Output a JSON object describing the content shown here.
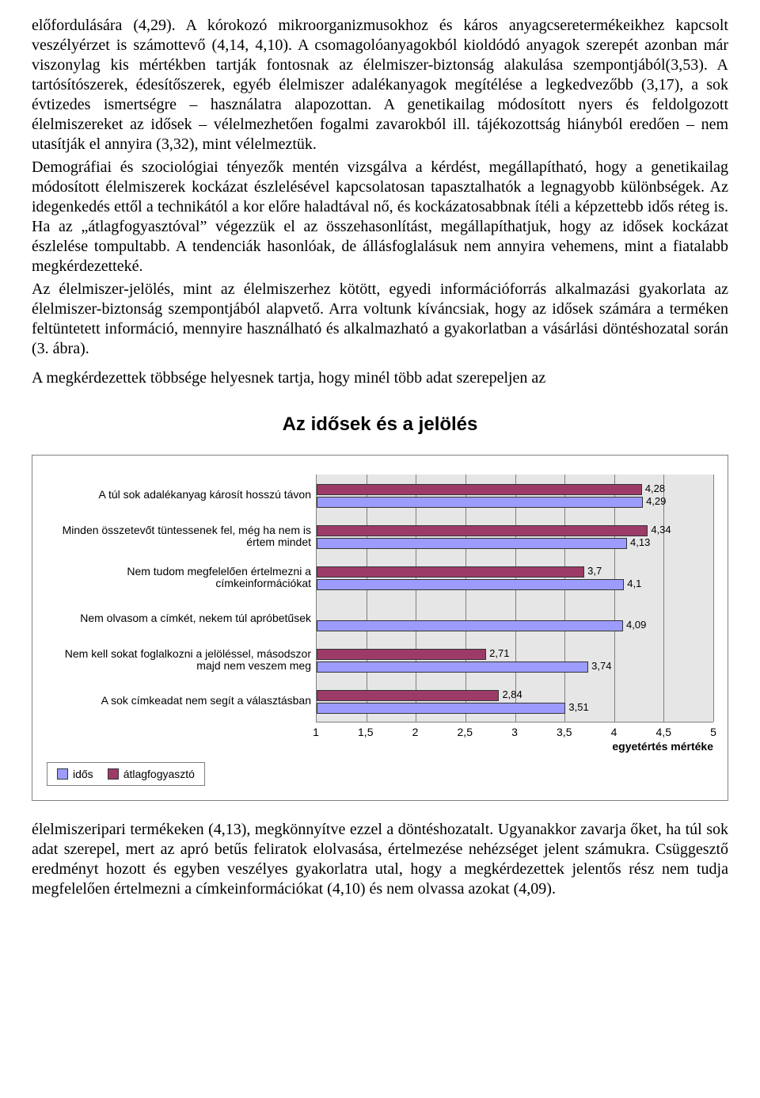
{
  "paragraphs": {
    "p1": "előfordulására (4,29). A kórokozó mikroorganizmusokhoz és káros anyagcseretermékeikhez kapcsolt veszélyérzet is számottevő (4,14, 4,10). A csomagolóanyagokból kioldódó anyagok szerepét azonban már viszonylag kis mértékben tartják fontosnak az élelmiszer-biztonság alakulása szempontjából(3,53). A tartósítószerek, édesítőszerek, egyéb élelmiszer adalékanyagok megítélése a legkedvezőbb (3,17), a sok évtizedes ismertségre – használatra alapozottan. A genetikailag módosított nyers és feldolgozott élelmiszereket az idősek – vélelmezhetően fogalmi zavarokból ill. tájékozottság hiányból eredően – nem utasítják el annyira (3,32), mint vélelmeztük.",
    "p2": "Demográfiai és szociológiai tényezők mentén vizsgálva a kérdést, megállapítható, hogy a genetikailag módosított élelmiszerek kockázat észlelésével kapcsolatosan tapasztalhatók a legnagyobb különbségek. Az idegenkedés ettől a technikától a kor előre haladtával nő, és kockázatosabbnak ítéli a képzettebb idős réteg is. Ha az „átlagfogyasztóval” végezzük el az összehasonlítást, megállapíthatjuk, hogy az idősek kockázat észlelése tompultabb. A tendenciák hasonlóak, de állásfoglalásuk nem annyira vehemens, mint a fiatalabb megkérdezetteké.",
    "p3": "Az élelmiszer-jelölés, mint az élelmiszerhez kötött, egyedi információforrás alkalmazási gyakorlata az élelmiszer-biztonság szempontjából alapvető. Arra voltunk kíváncsiak, hogy az idősek számára a terméken feltüntetett információ, mennyire használható és alkalmazható a gyakorlatban a vásárlási döntéshozatal során (3. ábra).",
    "p4": "A megkérdezettek többsége helyesnek tartja, hogy minél több adat szerepeljen az",
    "p5": "élelmiszeripari termékeken (4,13), megkönnyítve ezzel a döntéshozatalt. Ugyanakkor zavarja őket, ha túl sok adat szerepel, mert az apró betűs feliratok elolvasása, értelmezése nehézséget jelent számukra. Csüggesztő eredményt hozott és egyben veszélyes gyakorlatra utal, hogy a megkérdezettek jelentős rész nem tudja megfelelően értelmezni a címkeinformációkat (4,10) és nem olvassa azokat (4,09)."
  },
  "chart": {
    "title": "Az idősek és a jelölés",
    "type": "bar",
    "x_title": "egyetértés mértéke",
    "xlim": [
      1,
      5
    ],
    "xticks": [
      "1",
      "1,5",
      "2",
      "2,5",
      "3",
      "3,5",
      "4",
      "4,5",
      "5"
    ],
    "plot_bg": "#e6e6e6",
    "grid_color": "#808080",
    "label_fontsize": 14,
    "series": [
      {
        "key": "atlag",
        "label": "átlagfogyasztó",
        "color": "#9d3b68"
      },
      {
        "key": "idos",
        "label": "idős",
        "color": "#9c9cff"
      }
    ],
    "items": [
      {
        "label": "A túl sok adalékanyag károsít hosszú távon",
        "atlag": 4.28,
        "atlag_str": "4,28",
        "idos": 4.29,
        "idos_str": "4,29"
      },
      {
        "label": "Minden összetevőt tüntessenek fel, még ha nem is értem mindet",
        "atlag": 4.34,
        "atlag_str": "4,34",
        "idos": 4.13,
        "idos_str": "4,13"
      },
      {
        "label": "Nem tudom megfelelően értelmezni a címkeinformációkat",
        "atlag": 3.7,
        "atlag_str": "3,7",
        "idos": 4.1,
        "idos_str": "4,1"
      },
      {
        "label": "Nem olvasom a címkét, nekem túl apróbetűsek",
        "atlag": null,
        "atlag_str": "",
        "idos": 4.09,
        "idos_str": "4,09"
      },
      {
        "label": "Nem kell sokat foglalkozni a jelöléssel, másodszor majd nem veszem meg",
        "atlag": 2.71,
        "atlag_str": "2,71",
        "idos": 3.74,
        "idos_str": "3,74"
      },
      {
        "label": "A sok címkeadat nem segít a választásban",
        "atlag": 2.84,
        "atlag_str": "2,84",
        "idos": 3.51,
        "idos_str": "3,51"
      }
    ]
  }
}
